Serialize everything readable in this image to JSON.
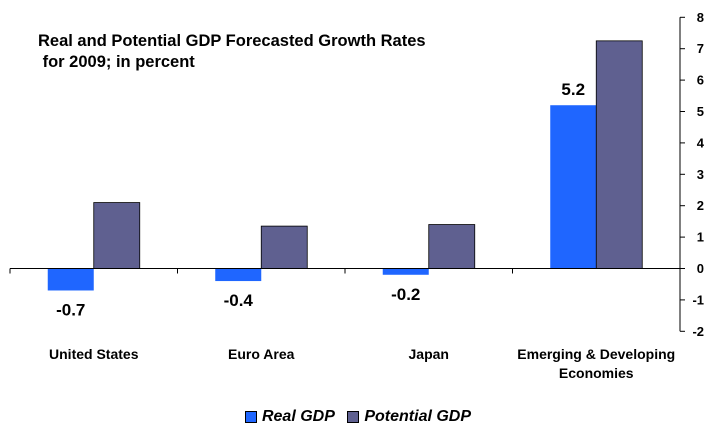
{
  "title_lines": [
    "Real and Potential GDP Forecasted Growth Rates",
    " for 2009; in percent"
  ],
  "colors": {
    "real": "#1f66ff",
    "potential": "#5f6090",
    "axis": "#000000"
  },
  "chart_data": {
    "type": "bar",
    "title": "Real and Potential GDP Forecasted Growth Rates for 2009; in percent",
    "categories": [
      "United States",
      "Euro Area",
      "Japan",
      "Emerging & Developing Economies"
    ],
    "category_lines": [
      [
        "United States"
      ],
      [
        "Euro Area"
      ],
      [
        "Japan"
      ],
      [
        "Emerging & Developing",
        "Economies"
      ]
    ],
    "series": [
      {
        "name": "Real GDP",
        "values": [
          -0.7,
          -0.4,
          -0.2,
          5.2
        ]
      },
      {
        "name": "Potential GDP",
        "values": [
          2.1,
          1.35,
          1.4,
          7.25
        ]
      }
    ],
    "data_labels": [
      "-0.7",
      "-0.4",
      "-0.2",
      "5.2"
    ],
    "ylim": [
      -2,
      8
    ],
    "yticks": [
      "-2",
      "-1",
      "0",
      "1",
      "2",
      "3",
      "4",
      "5",
      "6",
      "7",
      "8"
    ],
    "y_axis_side": "right",
    "legend_position": "bottom",
    "grid": false
  },
  "legend": [
    {
      "label": "Real GDP",
      "color": "#1f66ff"
    },
    {
      "label": "Potential GDP",
      "color": "#5f6090"
    }
  ]
}
